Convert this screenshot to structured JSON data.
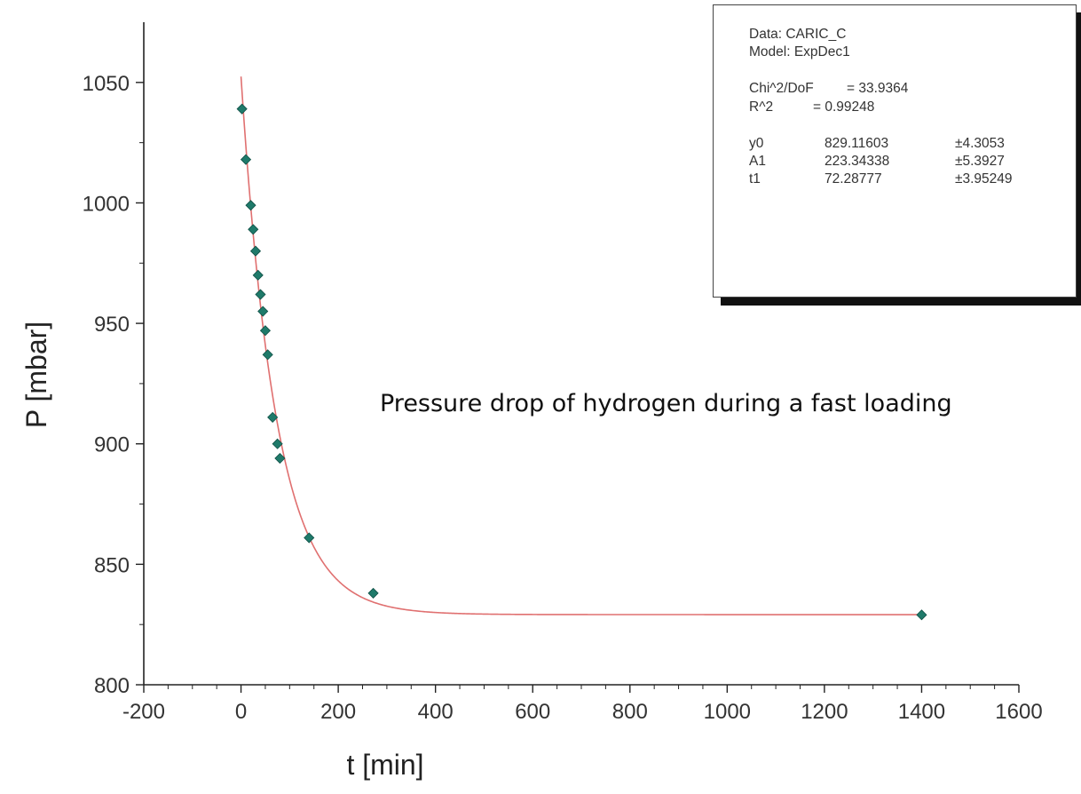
{
  "chart_data": {
    "type": "scatter",
    "xlabel": "t [min]",
    "ylabel": "P [mbar]",
    "xlim": [
      -200,
      1600
    ],
    "ylim": [
      800,
      1075
    ],
    "x_ticks": [
      "-200",
      "0",
      "200",
      "400",
      "600",
      "800",
      "1000",
      "1200",
      "1400",
      "1600"
    ],
    "y_ticks": [
      "800",
      "850",
      "900",
      "950",
      "1000",
      "1050"
    ],
    "annotation": "Pressure drop of hydrogen during a fast loading",
    "series": [
      {
        "marker_color": "#1f7a6a",
        "points": [
          {
            "x": 2,
            "y": 1039
          },
          {
            "x": 10,
            "y": 1018
          },
          {
            "x": 20,
            "y": 999
          },
          {
            "x": 25,
            "y": 989
          },
          {
            "x": 30,
            "y": 980
          },
          {
            "x": 35,
            "y": 970
          },
          {
            "x": 40,
            "y": 962
          },
          {
            "x": 45,
            "y": 955
          },
          {
            "x": 50,
            "y": 947
          },
          {
            "x": 55,
            "y": 937
          },
          {
            "x": 65,
            "y": 911
          },
          {
            "x": 75,
            "y": 900
          },
          {
            "x": 80,
            "y": 894
          },
          {
            "x": 140,
            "y": 861
          },
          {
            "x": 272,
            "y": 838
          },
          {
            "x": 1400,
            "y": 829
          }
        ]
      },
      {
        "line_color": "#e07070",
        "fit": {
          "model": "ExpDec1",
          "y0": 829.11603,
          "A1": 223.34338,
          "t1": 72.28777,
          "x_from": 0,
          "x_to": 1400
        }
      }
    ],
    "grid": false,
    "fit_box": {
      "data_line": "Data: CARIC_C",
      "model_line": "Model: ExpDec1",
      "chi_label": "Chi^2/DoF",
      "chi_value": "= 33.9364",
      "r2_label": "R^2",
      "r2_value": "= 0.99248",
      "params": [
        {
          "name": "y0",
          "value": "829.11603",
          "error": "±4.3053"
        },
        {
          "name": "A1",
          "value": "223.34338",
          "error": "±5.3927"
        },
        {
          "name": "t1",
          "value": "72.28777",
          "error": "±3.95249"
        }
      ]
    }
  }
}
